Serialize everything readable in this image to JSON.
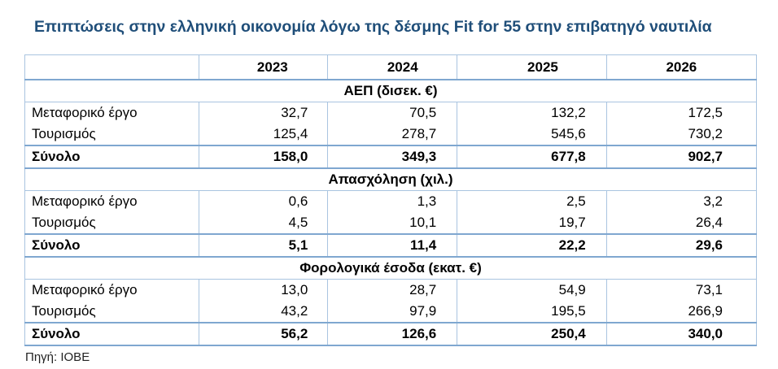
{
  "title": "Επιπτώσεις στην ελληνική οικονομία λόγω της δέσμης Fit for 55 στην επιβατηγό ναυτιλία",
  "columns": [
    "",
    "2023",
    "2024",
    "2025",
    "2026"
  ],
  "sections": [
    {
      "heading": "ΑΕΠ (δισεκ. €)",
      "rows": [
        {
          "label": "Μεταφορικό έργο",
          "values": [
            "32,7",
            "70,5",
            "132,2",
            "172,5"
          ]
        },
        {
          "label": "Τουρισμός",
          "values": [
            "125,4",
            "278,7",
            "545,6",
            "730,2"
          ]
        }
      ],
      "total": {
        "label": "Σύνολο",
        "values": [
          "158,0",
          "349,3",
          "677,8",
          "902,7"
        ]
      }
    },
    {
      "heading": "Απασχόληση (χιλ.)",
      "rows": [
        {
          "label": "Μεταφορικό έργο",
          "values": [
            "0,6",
            "1,3",
            "2,5",
            "3,2"
          ]
        },
        {
          "label": "Τουρισμός",
          "values": [
            "4,5",
            "10,1",
            "19,7",
            "26,4"
          ]
        }
      ],
      "total": {
        "label": "Σύνολο",
        "values": [
          "5,1",
          "11,4",
          "22,2",
          "29,6"
        ]
      }
    },
    {
      "heading": "Φορολογικά έσοδα (εκατ. €)",
      "rows": [
        {
          "label": "Μεταφορικό έργο",
          "values": [
            "13,0",
            "28,7",
            "54,9",
            "73,1"
          ]
        },
        {
          "label": "Τουρισμός",
          "values": [
            "43,2",
            "97,9",
            "195,5",
            "266,9"
          ]
        }
      ],
      "total": {
        "label": "Σύνολο",
        "values": [
          "56,2",
          "126,6",
          "250,4",
          "340,0"
        ]
      }
    }
  ],
  "source": "Πηγή: ΙΟΒΕ"
}
